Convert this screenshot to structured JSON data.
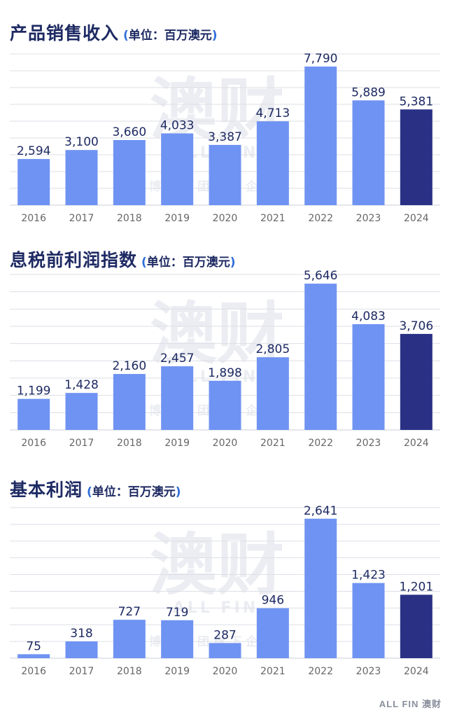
{
  "watermark": {
    "main": "澳财",
    "brand": "ALL FIN",
    "registered": "®",
    "sub": "博满集团旗下企业"
  },
  "footer": {
    "logo": "ALL FIN 澳财"
  },
  "colors": {
    "bar": "#6f93f2",
    "highlight": "#2a3185",
    "label": "#1e2a63",
    "tick": "#666666",
    "grid": "#dcdfe6"
  },
  "chart_data": [
    {
      "type": "bar",
      "title": "产品销售收入",
      "unit": "单位：百万澳元",
      "categories": [
        "2016",
        "2017",
        "2018",
        "2019",
        "2020",
        "2021",
        "2022",
        "2023",
        "2024"
      ],
      "values": [
        2594,
        3100,
        3660,
        4033,
        3387,
        4713,
        7790,
        5889,
        5381
      ],
      "labels": [
        "2,594",
        "3,100",
        "3,660",
        "4,033",
        "3,387",
        "4,713",
        "7,790",
        "5,889",
        "5,381"
      ],
      "highlight_index": 8,
      "ylim": [
        0,
        8500
      ],
      "grid": true
    },
    {
      "type": "bar",
      "title": "息税前利润指数",
      "unit": "单位：百万澳元",
      "categories": [
        "2016",
        "2017",
        "2018",
        "2019",
        "2020",
        "2021",
        "2022",
        "2023",
        "2024"
      ],
      "values": [
        1199,
        1428,
        2160,
        2457,
        1898,
        2805,
        5646,
        4083,
        3706
      ],
      "labels": [
        "1,199",
        "1,428",
        "2,160",
        "2,457",
        "1,898",
        "2,805",
        "5,646",
        "4,083",
        "3,706"
      ],
      "highlight_index": 8,
      "ylim": [
        0,
        6000
      ],
      "grid": true
    },
    {
      "type": "bar",
      "title": "基本利润",
      "unit": "单位：百万澳元",
      "categories": [
        "2016",
        "2017",
        "2018",
        "2019",
        "2020",
        "2021",
        "2022",
        "2023",
        "2024"
      ],
      "values": [
        75,
        318,
        727,
        719,
        287,
        946,
        2641,
        1423,
        1201
      ],
      "labels": [
        "75",
        "318",
        "727",
        "719",
        "287",
        "946",
        "2,641",
        "1,423",
        "1,201"
      ],
      "highlight_index": 8,
      "ylim": [
        0,
        2850
      ],
      "grid": true
    }
  ]
}
